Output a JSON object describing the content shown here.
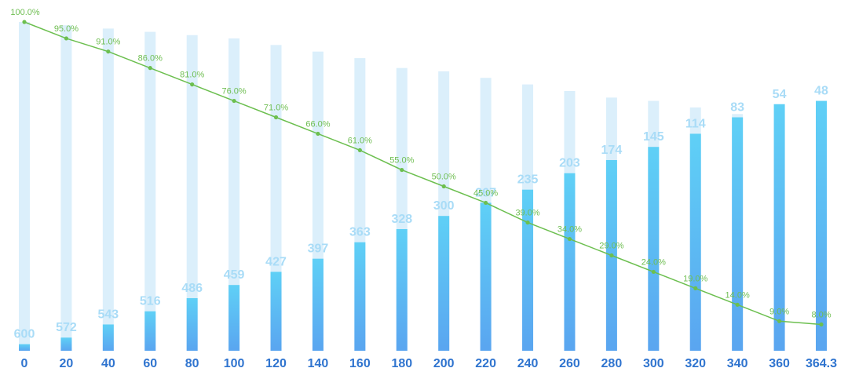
{
  "chart_data": {
    "type": "bar",
    "categories": [
      "0",
      "20",
      "40",
      "60",
      "80",
      "100",
      "120",
      "140",
      "160",
      "180",
      "200",
      "220",
      "240",
      "260",
      "280",
      "300",
      "320",
      "340",
      "360",
      "364.3"
    ],
    "series": [
      {
        "type": "bar",
        "values": [
          600,
          572,
          543,
          516,
          486,
          459,
          427,
          397,
          363,
          328,
          300,
          267,
          235,
          203,
          174,
          145,
          114,
          83,
          54,
          48
        ]
      },
      {
        "type": "bar-background",
        "values": [
          100,
          99,
          98,
          97,
          96,
          95,
          93,
          91,
          89,
          86,
          85,
          83,
          81,
          79,
          77,
          76,
          74,
          72,
          71,
          71
        ]
      },
      {
        "type": "line",
        "values": [
          100.0,
          95.0,
          91.0,
          86.0,
          81.0,
          76.0,
          71.0,
          66.0,
          61.0,
          55.0,
          50.0,
          45.0,
          39.0,
          34.0,
          29.0,
          24.0,
          19.0,
          14.0,
          9.0,
          8.0
        ]
      }
    ],
    "value_labels": [
      "600",
      "572",
      "543",
      "516",
      "486",
      "459",
      "427",
      "397",
      "363",
      "328",
      "300",
      "267",
      "235",
      "203",
      "174",
      "145",
      "114",
      "83",
      "54",
      "48"
    ],
    "line_labels": [
      "100.0%",
      "95.0%",
      "91.0%",
      "86.0%",
      "81.0%",
      "76.0%",
      "71.0%",
      "66.0%",
      "61.0%",
      "55.0%",
      "50.0%",
      "45.0%",
      "39.0%",
      "34.0%",
      "29.0%",
      "24.0%",
      "19.0%",
      "14.0%",
      "9.0%",
      "8.0%"
    ],
    "bar_fill_fraction": [
      0.02,
      0.04,
      0.08,
      0.12,
      0.16,
      0.2,
      0.24,
      0.28,
      0.33,
      0.37,
      0.41,
      0.45,
      0.49,
      0.54,
      0.58,
      0.62,
      0.66,
      0.71,
      0.75,
      0.76
    ],
    "grid": false,
    "legend": "none",
    "colors": {
      "bar_background": "#dbeffb",
      "bar_top": "#5fd0f6",
      "bar_bottom": "#5aa5f0",
      "line": "#6cbf4f",
      "value_label": "#a9dcf7",
      "percent_label": "#6fbe52",
      "tick_label": "#2f74cf"
    }
  }
}
